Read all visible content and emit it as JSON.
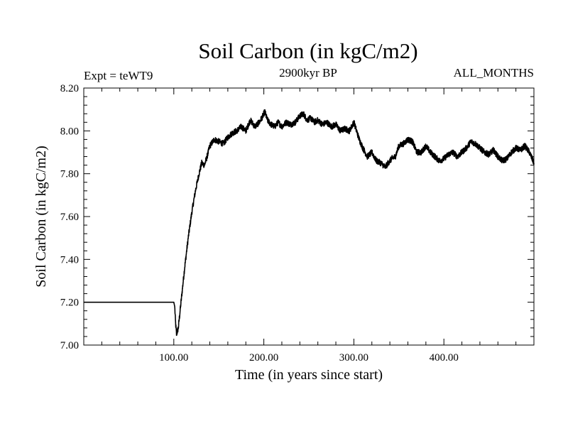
{
  "chart_data": {
    "type": "line",
    "title": "Soil Carbon (in kgC/m2)",
    "subtitle_left": "Expt = teWT9",
    "subtitle_center": "2900kyr BP",
    "subtitle_right": "ALL_MONTHS",
    "xlabel": "Time (in years since start)",
    "ylabel": "Soil Carbon (in kgC/m2)",
    "xlim": [
      0,
      500
    ],
    "ylim": [
      7.0,
      8.2
    ],
    "x_ticks": [
      100,
      200,
      300,
      400
    ],
    "x_tick_labels": [
      "100.00",
      "200.00",
      "300.00",
      "400.00"
    ],
    "y_ticks": [
      7.0,
      7.2,
      7.4,
      7.6,
      7.8,
      8.0,
      8.2
    ],
    "y_tick_labels": [
      "7.00",
      "7.20",
      "7.40",
      "7.60",
      "7.80",
      "8.00",
      "8.20"
    ],
    "line_color": "#000000",
    "series": [
      {
        "name": "Soil Carbon",
        "x": [
          0,
          100,
          101,
          102,
          103,
          105,
          108,
          112,
          116,
          120,
          124,
          128,
          131,
          134,
          137,
          140,
          145,
          150,
          155,
          160,
          165,
          170,
          175,
          180,
          185,
          190,
          195,
          199,
          201,
          204,
          208,
          212,
          216,
          220,
          225,
          230,
          235,
          240,
          244,
          248,
          252,
          256,
          260,
          265,
          270,
          275,
          280,
          285,
          290,
          295,
          300,
          303,
          306,
          310,
          315,
          320,
          325,
          330,
          335,
          338,
          342,
          346,
          350,
          355,
          360,
          365,
          370,
          375,
          380,
          385,
          390,
          395,
          400,
          405,
          410,
          415,
          420,
          425,
          430,
          435,
          440,
          445,
          450,
          455,
          460,
          465,
          470,
          475,
          480,
          485,
          490,
          495,
          500
        ],
        "y": [
          7.2,
          7.2,
          7.18,
          7.1,
          7.05,
          7.08,
          7.2,
          7.36,
          7.5,
          7.62,
          7.72,
          7.8,
          7.85,
          7.84,
          7.88,
          7.93,
          7.96,
          7.95,
          7.94,
          7.97,
          7.99,
          8.0,
          8.02,
          8.0,
          8.05,
          8.02,
          8.04,
          8.07,
          8.09,
          8.05,
          8.03,
          8.02,
          8.04,
          8.02,
          8.04,
          8.03,
          8.04,
          8.07,
          8.08,
          8.05,
          8.06,
          8.04,
          8.05,
          8.03,
          8.04,
          8.02,
          8.03,
          8.0,
          8.01,
          8.0,
          8.04,
          8.0,
          7.96,
          7.92,
          7.88,
          7.9,
          7.86,
          7.85,
          7.83,
          7.85,
          7.87,
          7.88,
          7.93,
          7.94,
          7.96,
          7.95,
          7.9,
          7.9,
          7.93,
          7.9,
          7.88,
          7.86,
          7.87,
          7.89,
          7.9,
          7.88,
          7.9,
          7.92,
          7.95,
          7.94,
          7.92,
          7.9,
          7.89,
          7.91,
          7.88,
          7.86,
          7.87,
          7.9,
          7.92,
          7.91,
          7.93,
          7.9,
          7.85
        ]
      }
    ]
  }
}
